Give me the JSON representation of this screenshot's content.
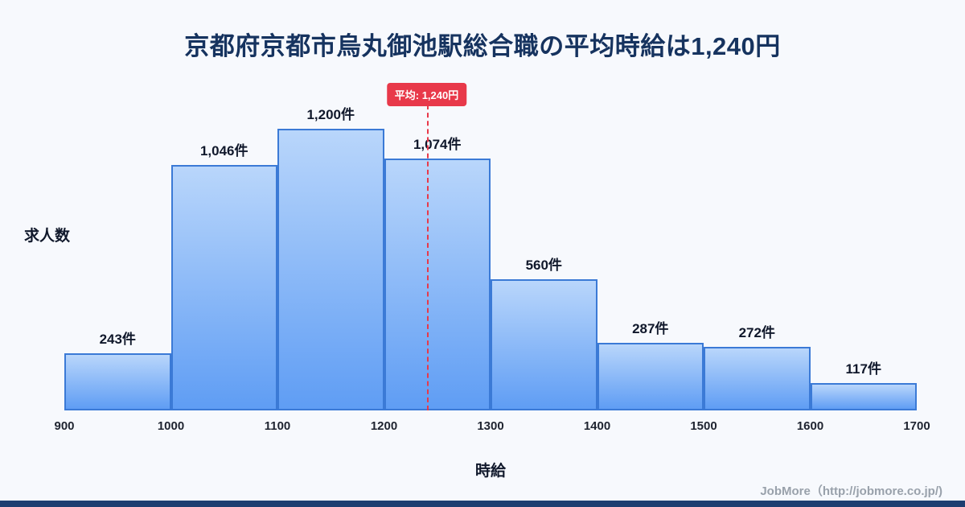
{
  "title": "京都府京都市烏丸御池駅総合職の平均時給は1,240円",
  "footer": "JobMore（http://jobmore.co.jp/)",
  "chart_data": {
    "type": "bar",
    "title": "京都府京都市烏丸御池駅総合職の平均時給は1,240円",
    "bins": [
      900,
      1000,
      1100,
      1200,
      1300,
      1400,
      1500,
      1600,
      1700
    ],
    "tick_labels": [
      "900",
      "1000",
      "1100",
      "1200",
      "1300",
      "1400",
      "1500",
      "1600",
      "1700"
    ],
    "values": [
      243,
      1046,
      1200,
      1074,
      560,
      287,
      272,
      117
    ],
    "bar_labels": [
      "243件",
      "1,046件",
      "1,200件",
      "1,074件",
      "560件",
      "287件",
      "272件",
      "117件"
    ],
    "xlabel": "時給",
    "ylabel": "求人数",
    "mean": 1240,
    "mean_label": "平均: 1,240円",
    "xlim": [
      900,
      1700
    ],
    "ylim": [
      0,
      1300
    ],
    "grid": false,
    "legend": "none"
  },
  "colors": {
    "title": "#16335f",
    "bar_top": "#b9d6fb",
    "bar_bottom": "#5f9df4",
    "bar_border": "#3b7ad6",
    "mean_line": "#e8394a",
    "bottom_strip": "#1d3e71"
  }
}
